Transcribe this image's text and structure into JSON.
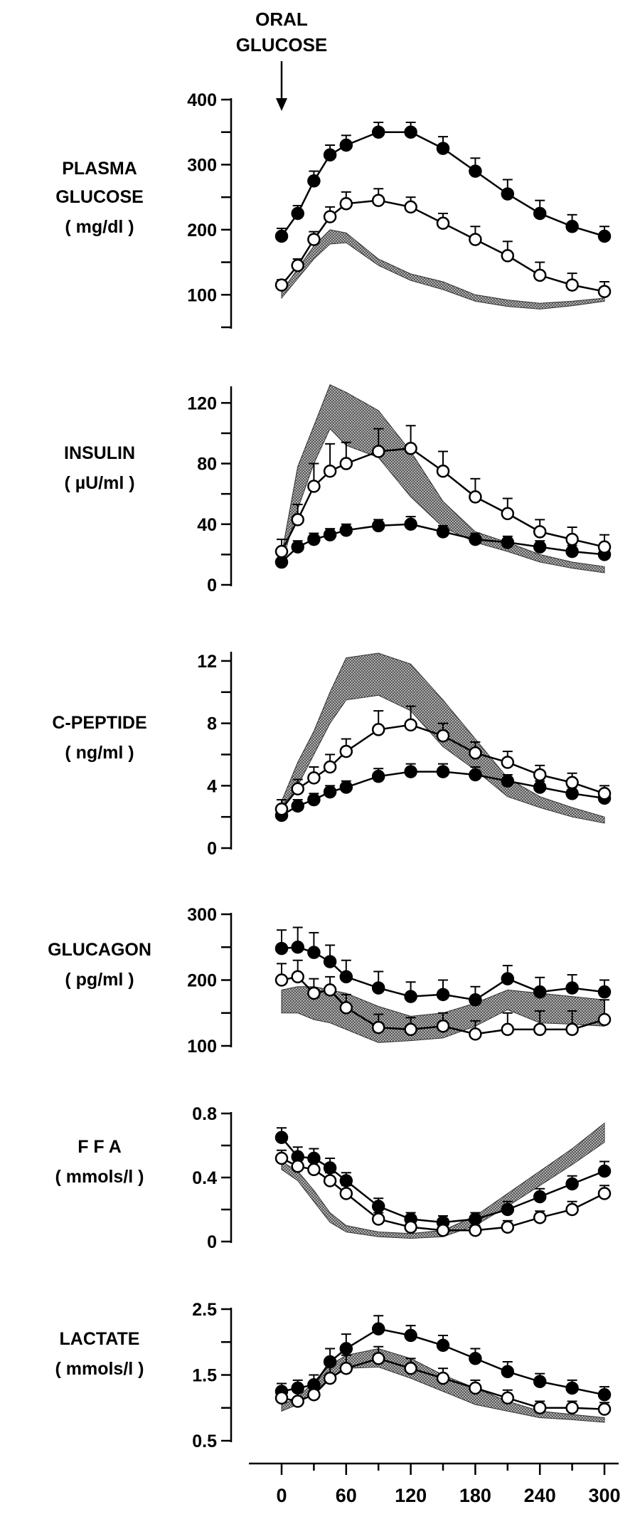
{
  "annotation": [
    "ORAL",
    "GLUCOSE"
  ],
  "x_axis": {
    "ticks": [
      0,
      60,
      120,
      180,
      240,
      300
    ],
    "range": [
      -20,
      310
    ]
  },
  "chart_data": [
    {
      "type": "line",
      "title_lines": [
        "PLASMA",
        "GLUCOSE",
        "( mg/dl )"
      ],
      "yticks": [
        100,
        200,
        300,
        400
      ],
      "ylim": [
        50,
        400
      ],
      "x": [
        0,
        15,
        30,
        45,
        60,
        90,
        120,
        150,
        180,
        210,
        240,
        270,
        300
      ],
      "series": [
        {
          "marker": "filled-circle",
          "values": [
            190,
            225,
            275,
            315,
            330,
            350,
            350,
            325,
            290,
            255,
            225,
            205,
            190
          ],
          "errors": [
            12,
            12,
            15,
            15,
            15,
            15,
            15,
            18,
            20,
            22,
            20,
            18,
            15
          ]
        },
        {
          "marker": "open-circle",
          "values": [
            115,
            145,
            185,
            220,
            240,
            245,
            235,
            210,
            185,
            160,
            130,
            115,
            105
          ],
          "errors": [
            8,
            10,
            12,
            15,
            18,
            18,
            15,
            15,
            20,
            22,
            20,
            18,
            15
          ]
        }
      ],
      "band": {
        "x": [
          0,
          15,
          30,
          45,
          60,
          90,
          120,
          150,
          180,
          210,
          240,
          270,
          300
        ],
        "lower": [
          95,
          125,
          155,
          178,
          180,
          145,
          122,
          108,
          90,
          82,
          78,
          83,
          90
        ],
        "upper": [
          105,
          140,
          175,
          200,
          195,
          155,
          132,
          120,
          100,
          92,
          87,
          90,
          95
        ]
      }
    },
    {
      "type": "line",
      "title_lines": [
        "INSULIN",
        "( µU/ml )"
      ],
      "yticks": [
        0,
        40,
        80,
        120
      ],
      "ylim": [
        0,
        130
      ],
      "x": [
        0,
        15,
        30,
        45,
        60,
        90,
        120,
        150,
        180,
        210,
        240,
        270,
        300
      ],
      "series": [
        {
          "marker": "filled-circle",
          "values": [
            15,
            25,
            30,
            33,
            36,
            39,
            40,
            35,
            30,
            28,
            25,
            22,
            20
          ],
          "errors": [
            5,
            4,
            4,
            4,
            4,
            4,
            5,
            4,
            4,
            4,
            4,
            4,
            4
          ]
        },
        {
          "marker": "open-circle",
          "values": [
            22,
            43,
            65,
            75,
            80,
            88,
            90,
            75,
            58,
            47,
            35,
            30,
            25
          ],
          "errors": [
            8,
            10,
            15,
            18,
            14,
            15,
            15,
            13,
            12,
            10,
            8,
            8,
            8
          ]
        }
      ],
      "band": {
        "x": [
          0,
          15,
          30,
          45,
          60,
          90,
          120,
          150,
          180,
          210,
          240,
          270,
          300
        ],
        "lower": [
          14,
          50,
          80,
          103,
          92,
          84,
          58,
          38,
          28,
          22,
          15,
          11,
          8
        ],
        "upper": [
          20,
          78,
          105,
          132,
          127,
          115,
          88,
          55,
          35,
          28,
          20,
          15,
          12
        ]
      }
    },
    {
      "type": "line",
      "title_lines": [
        "C-PEPTIDE",
        "( ng/ml )"
      ],
      "yticks": [
        0,
        4,
        8,
        12
      ],
      "ylim": [
        0,
        12.5
      ],
      "x": [
        0,
        15,
        30,
        45,
        60,
        90,
        120,
        150,
        180,
        210,
        240,
        270,
        300
      ],
      "series": [
        {
          "marker": "filled-circle",
          "values": [
            2.1,
            2.7,
            3.1,
            3.6,
            3.9,
            4.6,
            4.9,
            4.9,
            4.7,
            4.3,
            3.9,
            3.5,
            3.2
          ],
          "errors": [
            0.4,
            0.4,
            0.4,
            0.4,
            0.4,
            0.5,
            0.5,
            0.5,
            0.5,
            0.4,
            0.4,
            0.4,
            0.4
          ]
        },
        {
          "marker": "open-circle",
          "values": [
            2.5,
            3.8,
            4.5,
            5.2,
            6.2,
            7.6,
            7.9,
            7.2,
            6.1,
            5.5,
            4.7,
            4.2,
            3.5
          ],
          "errors": [
            0.6,
            0.6,
            0.7,
            0.8,
            0.8,
            1.2,
            1.2,
            0.8,
            0.7,
            0.7,
            0.6,
            0.6,
            0.5
          ]
        }
      ],
      "band": {
        "x": [
          0,
          15,
          30,
          45,
          60,
          90,
          120,
          150,
          180,
          210,
          240,
          270,
          300
        ],
        "lower": [
          2.6,
          4.0,
          6.0,
          8.0,
          9.5,
          9.8,
          8.8,
          6.5,
          5.0,
          3.3,
          2.6,
          2.0,
          1.6
        ],
        "upper": [
          3.0,
          5.5,
          7.5,
          10.0,
          12.2,
          12.5,
          11.8,
          9.5,
          7.0,
          4.5,
          3.3,
          2.6,
          2.0
        ]
      }
    },
    {
      "type": "line",
      "title_lines": [
        "GLUCAGON",
        "( pg/ml )"
      ],
      "yticks": [
        100,
        200,
        300
      ],
      "ylim": [
        100,
        300
      ],
      "x": [
        0,
        15,
        30,
        45,
        60,
        90,
        120,
        150,
        180,
        210,
        240,
        270,
        300
      ],
      "series": [
        {
          "marker": "filled-circle",
          "values": [
            248,
            250,
            242,
            228,
            205,
            188,
            175,
            178,
            170,
            202,
            182,
            188,
            182
          ],
          "errors": [
            28,
            30,
            30,
            25,
            25,
            25,
            22,
            22,
            20,
            20,
            22,
            20,
            18
          ]
        },
        {
          "marker": "open-circle",
          "values": [
            200,
            205,
            180,
            185,
            158,
            128,
            125,
            130,
            118,
            125,
            125,
            125,
            140
          ],
          "errors": [
            25,
            25,
            22,
            20,
            20,
            20,
            18,
            20,
            20,
            25,
            28,
            28,
            30
          ]
        }
      ],
      "band": {
        "x": [
          0,
          15,
          30,
          45,
          60,
          90,
          120,
          150,
          180,
          210,
          240,
          270,
          300
        ],
        "lower": [
          150,
          150,
          140,
          135,
          125,
          105,
          108,
          112,
          130,
          155,
          135,
          133,
          130
        ],
        "upper": [
          185,
          190,
          190,
          185,
          180,
          160,
          145,
          150,
          165,
          185,
          180,
          175,
          170
        ]
      }
    },
    {
      "type": "line",
      "title_lines": [
        "F F A",
        "( mmols/l )"
      ],
      "yticks": [
        0,
        0.4,
        0.8
      ],
      "ylim": [
        0,
        0.8
      ],
      "x": [
        0,
        15,
        30,
        45,
        60,
        90,
        120,
        150,
        180,
        210,
        240,
        270,
        300
      ],
      "series": [
        {
          "marker": "filled-circle",
          "values": [
            0.65,
            0.53,
            0.52,
            0.46,
            0.38,
            0.22,
            0.14,
            0.12,
            0.14,
            0.2,
            0.28,
            0.36,
            0.44
          ],
          "errors": [
            0.06,
            0.06,
            0.06,
            0.06,
            0.05,
            0.05,
            0.04,
            0.04,
            0.04,
            0.05,
            0.05,
            0.05,
            0.06
          ]
        },
        {
          "marker": "open-circle",
          "values": [
            0.52,
            0.47,
            0.45,
            0.38,
            0.3,
            0.14,
            0.09,
            0.07,
            0.07,
            0.09,
            0.15,
            0.2,
            0.3
          ],
          "errors": [
            0.05,
            0.05,
            0.05,
            0.05,
            0.05,
            0.04,
            0.03,
            0.03,
            0.03,
            0.04,
            0.04,
            0.05,
            0.05
          ]
        }
      ],
      "band": {
        "x": [
          0,
          15,
          30,
          45,
          60,
          90,
          120,
          150,
          180,
          210,
          240,
          270,
          300
        ],
        "lower": [
          0.45,
          0.38,
          0.25,
          0.12,
          0.06,
          0.03,
          0.02,
          0.03,
          0.1,
          0.22,
          0.35,
          0.48,
          0.62
        ],
        "upper": [
          0.5,
          0.44,
          0.32,
          0.18,
          0.1,
          0.06,
          0.05,
          0.07,
          0.16,
          0.3,
          0.44,
          0.58,
          0.74
        ]
      }
    },
    {
      "type": "line",
      "title_lines": [
        "LACTATE",
        "( mmols/l )"
      ],
      "yticks": [
        0.5,
        1.5,
        2.5
      ],
      "ylim": [
        0.5,
        2.5
      ],
      "x": [
        0,
        15,
        30,
        45,
        60,
        90,
        120,
        150,
        180,
        210,
        240,
        270,
        300
      ],
      "series": [
        {
          "marker": "filled-circle",
          "values": [
            1.25,
            1.3,
            1.35,
            1.7,
            1.9,
            2.2,
            2.1,
            1.95,
            1.75,
            1.55,
            1.4,
            1.3,
            1.2
          ],
          "errors": [
            0.12,
            0.12,
            0.15,
            0.2,
            0.22,
            0.2,
            0.15,
            0.15,
            0.15,
            0.15,
            0.12,
            0.12,
            0.12
          ]
        },
        {
          "marker": "open-circle",
          "values": [
            1.15,
            1.1,
            1.2,
            1.45,
            1.6,
            1.75,
            1.6,
            1.45,
            1.3,
            1.15,
            1.0,
            1.0,
            0.98
          ],
          "errors": [
            0.15,
            0.15,
            0.15,
            0.22,
            0.2,
            0.18,
            0.15,
            0.15,
            0.12,
            0.12,
            0.1,
            0.1,
            0.1
          ]
        }
      ],
      "band": {
        "x": [
          0,
          15,
          30,
          45,
          60,
          90,
          120,
          150,
          180,
          210,
          240,
          270,
          300
        ],
        "lower": [
          0.95,
          1.05,
          1.25,
          1.45,
          1.6,
          1.62,
          1.45,
          1.25,
          1.05,
          0.95,
          0.85,
          0.82,
          0.78
        ],
        "upper": [
          1.05,
          1.15,
          1.4,
          1.65,
          1.8,
          1.9,
          1.75,
          1.5,
          1.3,
          1.1,
          0.95,
          0.9,
          0.85
        ]
      }
    }
  ]
}
